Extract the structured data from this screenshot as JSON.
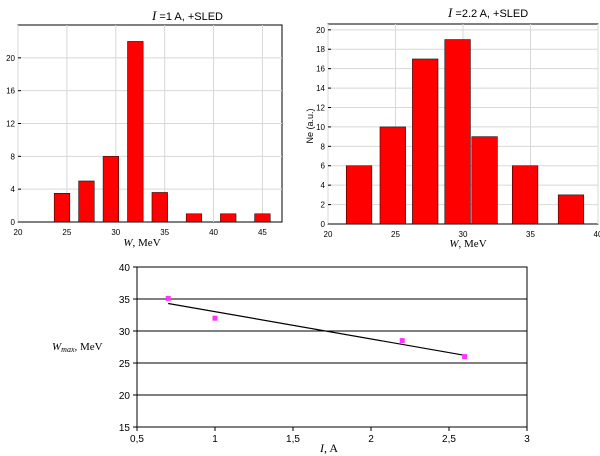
{
  "chart_data": [
    {
      "type": "bar",
      "title_symbol": "I",
      "title_rest": " =1 A, +SLED",
      "xlabel_symbol": "W",
      "xlabel_rest": ", MeV",
      "ylabel": "",
      "xlim": [
        20,
        47
      ],
      "ylim": [
        0,
        24
      ],
      "x_ticks": [
        20,
        25,
        30,
        35,
        40,
        45
      ],
      "y_ticks": [
        0,
        4,
        8,
        12,
        16,
        20
      ],
      "bar_width": 1.6,
      "bars": [
        {
          "x": 24.5,
          "value": 3.5
        },
        {
          "x": 27.0,
          "value": 5
        },
        {
          "x": 29.5,
          "value": 8
        },
        {
          "x": 32.0,
          "value": 22
        },
        {
          "x": 34.5,
          "value": 3.6
        },
        {
          "x": 38.0,
          "value": 1
        },
        {
          "x": 41.5,
          "value": 1
        },
        {
          "x": 45.0,
          "value": 1
        }
      ],
      "bar_color": "#ff0000",
      "grid": true
    },
    {
      "type": "bar",
      "title_symbol": "I",
      "title_rest": " =2.2 A, +SLED",
      "xlabel_symbol": "W",
      "xlabel_rest": ", MeV",
      "ylabel": "Ne (a.u.)",
      "xlim": [
        20,
        40
      ],
      "ylim": [
        0,
        20.6
      ],
      "x_ticks": [
        20,
        25,
        30,
        35,
        40
      ],
      "y_ticks": [
        0,
        2,
        4,
        6,
        8,
        10,
        12,
        14,
        16,
        18,
        20
      ],
      "bar_width": 1.9,
      "bars": [
        {
          "x": 22.3,
          "value": 6
        },
        {
          "x": 24.8,
          "value": 10
        },
        {
          "x": 27.2,
          "value": 17
        },
        {
          "x": 29.6,
          "value": 19
        },
        {
          "x": 31.6,
          "value": 9
        },
        {
          "x": 34.6,
          "value": 6
        },
        {
          "x": 38.0,
          "value": 3
        }
      ],
      "bar_color": "#ff0000",
      "grid": true
    },
    {
      "type": "scatter",
      "xlabel_symbol": "I",
      "xlabel_rest": ", A",
      "ylabel_symbol": "W",
      "ylabel_sub": "max",
      "ylabel_rest": ", MeV",
      "xlim": [
        0.5,
        3
      ],
      "ylim": [
        15,
        40
      ],
      "x_ticks": [
        "0,5",
        "1",
        "1,5",
        "2",
        "2,5",
        "3"
      ],
      "x_tick_values": [
        0.5,
        1,
        1.5,
        2,
        2.5,
        3
      ],
      "y_ticks": [
        15,
        20,
        25,
        30,
        35,
        40
      ],
      "points": [
        {
          "x": 0.7,
          "y": 35.1
        },
        {
          "x": 1.0,
          "y": 32.0
        },
        {
          "x": 2.2,
          "y": 28.5
        },
        {
          "x": 2.6,
          "y": 26.0
        }
      ],
      "point_color": "#ff33ff",
      "trendline": {
        "x": [
          0.7,
          2.6
        ],
        "y": [
          34.3,
          26.2
        ]
      },
      "grid": "horizontal"
    }
  ]
}
